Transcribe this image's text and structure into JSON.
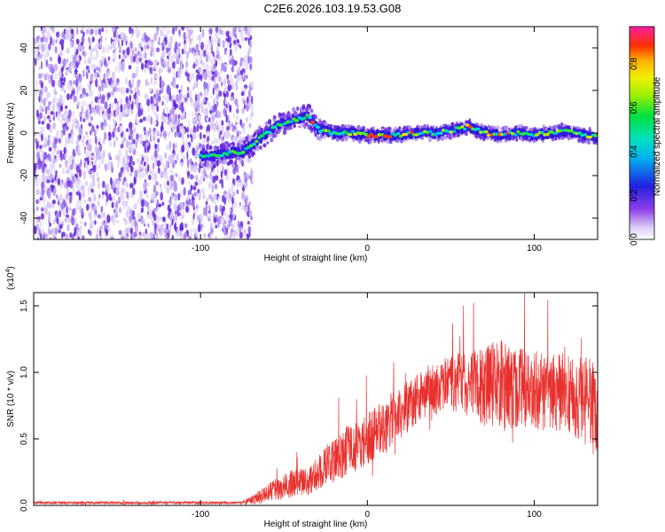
{
  "title": "C2E6.2026.103.19.53.G08",
  "chart_data": [
    {
      "type": "heatmap",
      "name": "spectrogram",
      "xlabel": "Height of straight line (km)",
      "ylabel": "Frequency (Hz)",
      "xlim": [
        -200,
        138
      ],
      "ylim": [
        -50,
        50
      ],
      "x_ticks": [
        "-100",
        "0",
        "100"
      ],
      "x_tick_values": [
        -100,
        0,
        100
      ],
      "y_ticks": [
        "40",
        "20",
        "0",
        "-20",
        "-40"
      ],
      "y_tick_values": [
        40,
        20,
        0,
        -20,
        -40
      ],
      "noise_region_x": [
        -200,
        -73
      ],
      "ridge": {
        "x": [
          -100,
          -95,
          -88,
          -80,
          -75,
          -70,
          -65,
          -60,
          -55,
          -50,
          -45,
          -40,
          -35,
          -30,
          -25,
          -20,
          -10,
          0,
          10,
          20,
          30,
          40,
          50,
          60,
          70,
          80,
          90,
          100,
          110,
          120,
          130,
          138
        ],
        "freq": [
          -11,
          -11,
          -10,
          -9,
          -9,
          -6,
          -3,
          0,
          3,
          5,
          6,
          7,
          8,
          2,
          1,
          0,
          0,
          -1,
          -1,
          -1,
          0,
          0,
          1,
          3,
          0,
          -1,
          0,
          -1,
          0,
          1,
          -1,
          -2
        ]
      },
      "colorbar": {
        "label": "Normalized spectral amplitude",
        "ticks": [
          "0.8",
          "0.6",
          "0.4",
          "0.2",
          "0.0"
        ],
        "tick_values": [
          0.8,
          0.6,
          0.4,
          0.2,
          0.0
        ],
        "range": [
          0,
          0.97
        ]
      }
    },
    {
      "type": "line",
      "name": "snr",
      "xlabel": "Height of straight line (km)",
      "ylabel": "SNR (10 * v/v)",
      "exponent_label": "(x10",
      "exponent_sup": "4",
      "exponent_close": ")",
      "xlim": [
        -200,
        138
      ],
      "ylim": [
        0,
        1.6
      ],
      "x_ticks": [
        "-100",
        "0",
        "100"
      ],
      "x_tick_values": [
        -100,
        0,
        100
      ],
      "y_ticks": [
        "0.0",
        "0.5",
        "1.0",
        "1.5"
      ],
      "y_tick_values": [
        0.0,
        0.5,
        1.0,
        1.5
      ],
      "color": "#e8312e",
      "envelope": {
        "x": [
          -200,
          -100,
          -75,
          -65,
          -55,
          -45,
          -35,
          -25,
          -15,
          -5,
          0,
          10,
          20,
          30,
          40,
          50,
          60,
          70,
          80,
          90,
          100,
          110,
          120,
          130,
          138
        ],
        "mean": [
          0.02,
          0.02,
          0.02,
          0.06,
          0.12,
          0.16,
          0.18,
          0.3,
          0.4,
          0.45,
          0.5,
          0.6,
          0.7,
          0.8,
          0.88,
          0.92,
          0.92,
          0.9,
          0.9,
          0.88,
          0.87,
          0.85,
          0.86,
          0.8,
          0.7
        ],
        "spread": [
          0.01,
          0.01,
          0.01,
          0.05,
          0.08,
          0.12,
          0.1,
          0.15,
          0.2,
          0.18,
          0.2,
          0.2,
          0.2,
          0.18,
          0.2,
          0.22,
          0.25,
          0.3,
          0.35,
          0.3,
          0.3,
          0.3,
          0.3,
          0.35,
          0.35
        ]
      }
    }
  ]
}
